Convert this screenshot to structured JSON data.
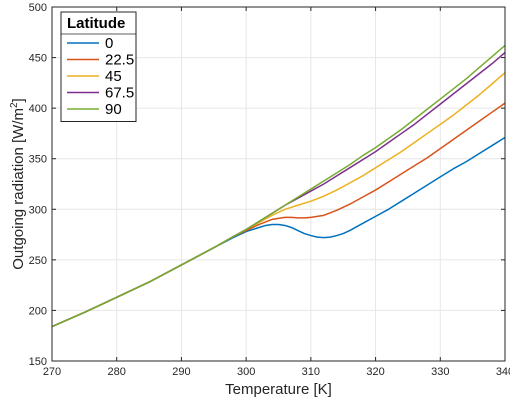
{
  "chart_data": {
    "type": "line",
    "xlabel": "Temperature [K]",
    "ylabel_main": "Outgoing radiation [W/m",
    "ylabel_sup": "2",
    "ylabel_end": "]",
    "xlim": [
      270,
      340
    ],
    "ylim": [
      150,
      500
    ],
    "xticks": [
      270,
      280,
      290,
      300,
      310,
      320,
      330,
      340
    ],
    "yticks": [
      150,
      200,
      250,
      300,
      350,
      400,
      450,
      500
    ],
    "grid": true,
    "legend": {
      "title": "Latitude",
      "location": "top-left"
    },
    "series": [
      {
        "name": "0",
        "color": "#0072BD",
        "x": [
          270,
          275,
          280,
          285,
          290,
          295,
          298,
          300,
          302,
          303,
          304,
          305,
          306,
          307,
          308,
          309,
          310,
          311,
          312,
          313,
          314,
          315,
          316,
          318,
          320,
          322,
          324,
          326,
          328,
          330,
          332,
          334,
          336,
          338,
          340
        ],
        "y": [
          184,
          198,
          213,
          228,
          245,
          262,
          272,
          278,
          282,
          284,
          285,
          285,
          284,
          282,
          279,
          276,
          274,
          272.5,
          272,
          272.5,
          274,
          276,
          279,
          286,
          293,
          300,
          308,
          316,
          324,
          332,
          340,
          347,
          355,
          363,
          371
        ]
      },
      {
        "name": "22.5",
        "color": "#D95319",
        "x": [
          270,
          275,
          280,
          285,
          290,
          295,
          298,
          300,
          302,
          304,
          305,
          306,
          307,
          308,
          309,
          310,
          311,
          312,
          314,
          316,
          318,
          320,
          322,
          324,
          326,
          328,
          330,
          332,
          334,
          336,
          338,
          340
        ],
        "y": [
          184,
          198,
          213,
          228,
          245,
          262,
          273,
          279,
          285,
          290,
          291,
          292,
          292,
          291.5,
          291.5,
          292,
          293,
          294,
          299,
          305,
          312,
          319,
          327,
          335,
          343,
          351,
          360,
          369,
          378,
          387,
          396,
          405
        ]
      },
      {
        "name": "45",
        "color": "#EDB120",
        "x": [
          270,
          275,
          280,
          285,
          290,
          295,
          298,
          300,
          302,
          304,
          306,
          308,
          310,
          312,
          314,
          316,
          318,
          320,
          322,
          324,
          326,
          328,
          330,
          332,
          334,
          336,
          338,
          340
        ],
        "y": [
          184,
          198,
          213,
          228,
          245,
          262,
          273,
          280,
          287,
          294,
          300,
          304,
          308,
          313,
          319,
          326,
          333,
          341,
          349,
          357,
          366,
          375,
          384,
          393,
          403,
          413,
          424,
          435
        ]
      },
      {
        "name": "67.5",
        "color": "#7E2F8E",
        "x": [
          270,
          275,
          280,
          285,
          290,
          295,
          298,
          300,
          302,
          304,
          306,
          308,
          310,
          312,
          314,
          316,
          318,
          320,
          322,
          324,
          326,
          328,
          330,
          332,
          334,
          336,
          338,
          340
        ],
        "y": [
          184,
          198,
          213,
          228,
          245,
          262,
          273,
          280,
          288,
          296,
          304,
          311,
          318,
          325,
          333,
          341,
          349,
          357,
          366,
          375,
          384,
          394,
          404,
          414,
          424,
          434,
          444,
          455
        ]
      },
      {
        "name": "90",
        "color": "#77AC30",
        "x": [
          270,
          275,
          280,
          285,
          290,
          295,
          298,
          300,
          302,
          304,
          306,
          308,
          310,
          312,
          314,
          316,
          318,
          320,
          322,
          324,
          326,
          328,
          330,
          332,
          334,
          336,
          338,
          340
        ],
        "y": [
          184,
          198,
          213,
          228,
          245,
          262,
          273,
          280,
          288,
          296,
          304,
          312,
          320,
          328,
          336,
          344,
          353,
          361,
          370,
          379,
          389,
          399,
          409,
          419,
          429,
          440,
          451,
          462
        ]
      }
    ]
  }
}
